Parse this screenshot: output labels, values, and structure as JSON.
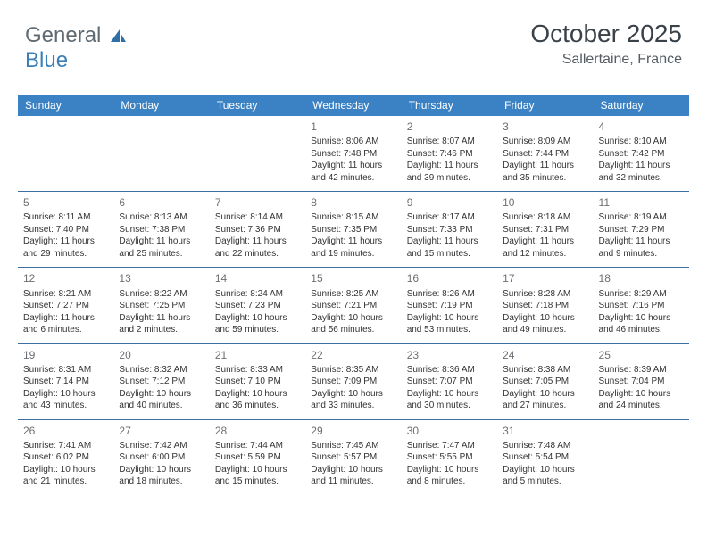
{
  "logo": {
    "text1": "General",
    "text2": "Blue",
    "icon_color": "#2f6fa8"
  },
  "header": {
    "title": "October 2025",
    "location": "Sallertaine, France"
  },
  "colors": {
    "header_bg": "#3b82c4",
    "header_text": "#ffffff",
    "cell_border": "#3b6fa0",
    "daynum": "#6b6f73",
    "body_text": "#333333",
    "title": "#3a4149",
    "subtitle": "#555c63"
  },
  "day_headers": [
    "Sunday",
    "Monday",
    "Tuesday",
    "Wednesday",
    "Thursday",
    "Friday",
    "Saturday"
  ],
  "weeks": [
    [
      {
        "n": "",
        "sr": "",
        "ss": "",
        "dl": ""
      },
      {
        "n": "",
        "sr": "",
        "ss": "",
        "dl": ""
      },
      {
        "n": "",
        "sr": "",
        "ss": "",
        "dl": ""
      },
      {
        "n": "1",
        "sr": "Sunrise: 8:06 AM",
        "ss": "Sunset: 7:48 PM",
        "dl": "Daylight: 11 hours and 42 minutes."
      },
      {
        "n": "2",
        "sr": "Sunrise: 8:07 AM",
        "ss": "Sunset: 7:46 PM",
        "dl": "Daylight: 11 hours and 39 minutes."
      },
      {
        "n": "3",
        "sr": "Sunrise: 8:09 AM",
        "ss": "Sunset: 7:44 PM",
        "dl": "Daylight: 11 hours and 35 minutes."
      },
      {
        "n": "4",
        "sr": "Sunrise: 8:10 AM",
        "ss": "Sunset: 7:42 PM",
        "dl": "Daylight: 11 hours and 32 minutes."
      }
    ],
    [
      {
        "n": "5",
        "sr": "Sunrise: 8:11 AM",
        "ss": "Sunset: 7:40 PM",
        "dl": "Daylight: 11 hours and 29 minutes."
      },
      {
        "n": "6",
        "sr": "Sunrise: 8:13 AM",
        "ss": "Sunset: 7:38 PM",
        "dl": "Daylight: 11 hours and 25 minutes."
      },
      {
        "n": "7",
        "sr": "Sunrise: 8:14 AM",
        "ss": "Sunset: 7:36 PM",
        "dl": "Daylight: 11 hours and 22 minutes."
      },
      {
        "n": "8",
        "sr": "Sunrise: 8:15 AM",
        "ss": "Sunset: 7:35 PM",
        "dl": "Daylight: 11 hours and 19 minutes."
      },
      {
        "n": "9",
        "sr": "Sunrise: 8:17 AM",
        "ss": "Sunset: 7:33 PM",
        "dl": "Daylight: 11 hours and 15 minutes."
      },
      {
        "n": "10",
        "sr": "Sunrise: 8:18 AM",
        "ss": "Sunset: 7:31 PM",
        "dl": "Daylight: 11 hours and 12 minutes."
      },
      {
        "n": "11",
        "sr": "Sunrise: 8:19 AM",
        "ss": "Sunset: 7:29 PM",
        "dl": "Daylight: 11 hours and 9 minutes."
      }
    ],
    [
      {
        "n": "12",
        "sr": "Sunrise: 8:21 AM",
        "ss": "Sunset: 7:27 PM",
        "dl": "Daylight: 11 hours and 6 minutes."
      },
      {
        "n": "13",
        "sr": "Sunrise: 8:22 AM",
        "ss": "Sunset: 7:25 PM",
        "dl": "Daylight: 11 hours and 2 minutes."
      },
      {
        "n": "14",
        "sr": "Sunrise: 8:24 AM",
        "ss": "Sunset: 7:23 PM",
        "dl": "Daylight: 10 hours and 59 minutes."
      },
      {
        "n": "15",
        "sr": "Sunrise: 8:25 AM",
        "ss": "Sunset: 7:21 PM",
        "dl": "Daylight: 10 hours and 56 minutes."
      },
      {
        "n": "16",
        "sr": "Sunrise: 8:26 AM",
        "ss": "Sunset: 7:19 PM",
        "dl": "Daylight: 10 hours and 53 minutes."
      },
      {
        "n": "17",
        "sr": "Sunrise: 8:28 AM",
        "ss": "Sunset: 7:18 PM",
        "dl": "Daylight: 10 hours and 49 minutes."
      },
      {
        "n": "18",
        "sr": "Sunrise: 8:29 AM",
        "ss": "Sunset: 7:16 PM",
        "dl": "Daylight: 10 hours and 46 minutes."
      }
    ],
    [
      {
        "n": "19",
        "sr": "Sunrise: 8:31 AM",
        "ss": "Sunset: 7:14 PM",
        "dl": "Daylight: 10 hours and 43 minutes."
      },
      {
        "n": "20",
        "sr": "Sunrise: 8:32 AM",
        "ss": "Sunset: 7:12 PM",
        "dl": "Daylight: 10 hours and 40 minutes."
      },
      {
        "n": "21",
        "sr": "Sunrise: 8:33 AM",
        "ss": "Sunset: 7:10 PM",
        "dl": "Daylight: 10 hours and 36 minutes."
      },
      {
        "n": "22",
        "sr": "Sunrise: 8:35 AM",
        "ss": "Sunset: 7:09 PM",
        "dl": "Daylight: 10 hours and 33 minutes."
      },
      {
        "n": "23",
        "sr": "Sunrise: 8:36 AM",
        "ss": "Sunset: 7:07 PM",
        "dl": "Daylight: 10 hours and 30 minutes."
      },
      {
        "n": "24",
        "sr": "Sunrise: 8:38 AM",
        "ss": "Sunset: 7:05 PM",
        "dl": "Daylight: 10 hours and 27 minutes."
      },
      {
        "n": "25",
        "sr": "Sunrise: 8:39 AM",
        "ss": "Sunset: 7:04 PM",
        "dl": "Daylight: 10 hours and 24 minutes."
      }
    ],
    [
      {
        "n": "26",
        "sr": "Sunrise: 7:41 AM",
        "ss": "Sunset: 6:02 PM",
        "dl": "Daylight: 10 hours and 21 minutes."
      },
      {
        "n": "27",
        "sr": "Sunrise: 7:42 AM",
        "ss": "Sunset: 6:00 PM",
        "dl": "Daylight: 10 hours and 18 minutes."
      },
      {
        "n": "28",
        "sr": "Sunrise: 7:44 AM",
        "ss": "Sunset: 5:59 PM",
        "dl": "Daylight: 10 hours and 15 minutes."
      },
      {
        "n": "29",
        "sr": "Sunrise: 7:45 AM",
        "ss": "Sunset: 5:57 PM",
        "dl": "Daylight: 10 hours and 11 minutes."
      },
      {
        "n": "30",
        "sr": "Sunrise: 7:47 AM",
        "ss": "Sunset: 5:55 PM",
        "dl": "Daylight: 10 hours and 8 minutes."
      },
      {
        "n": "31",
        "sr": "Sunrise: 7:48 AM",
        "ss": "Sunset: 5:54 PM",
        "dl": "Daylight: 10 hours and 5 minutes."
      },
      {
        "n": "",
        "sr": "",
        "ss": "",
        "dl": ""
      }
    ]
  ]
}
